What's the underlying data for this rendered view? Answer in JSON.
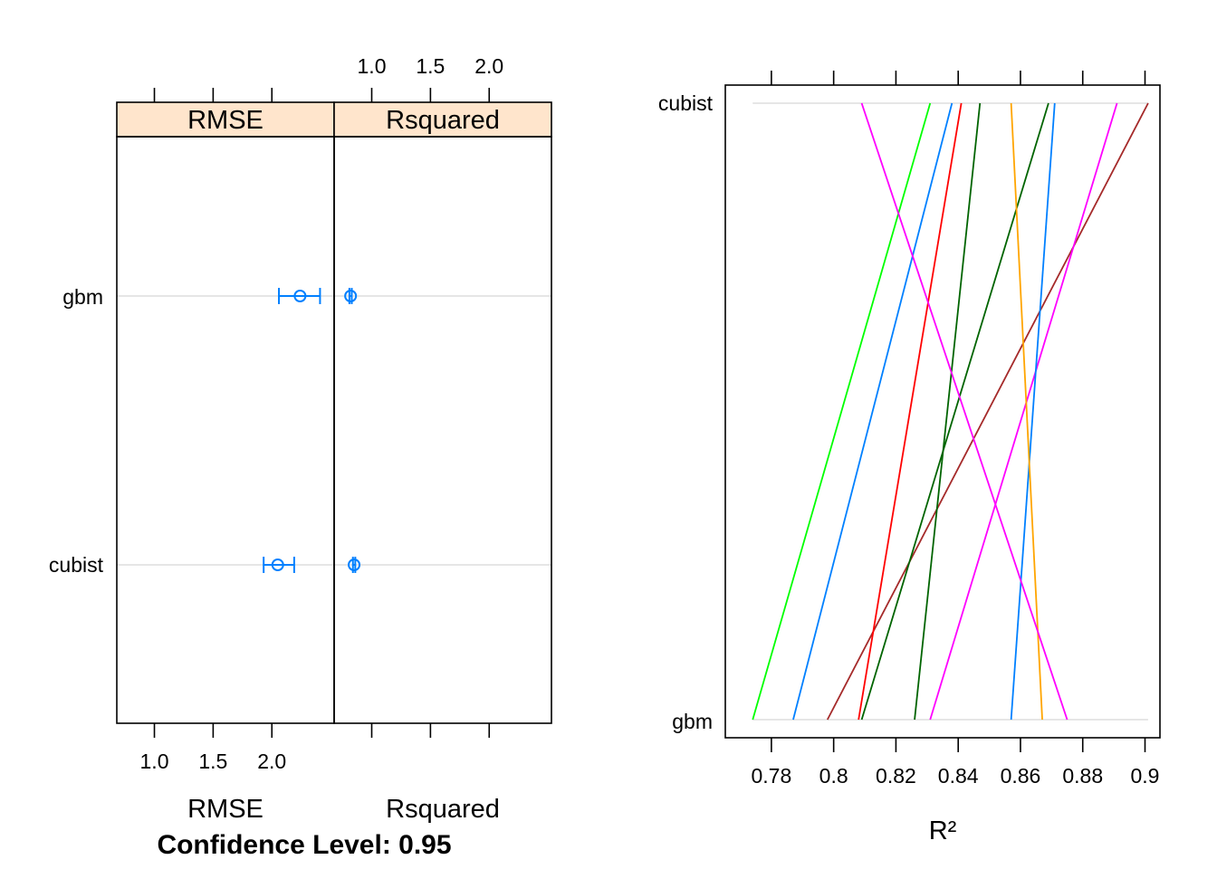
{
  "chart_data": [
    {
      "type": "dotplot-ci",
      "caption": "Confidence Level: 0.95",
      "panels": [
        "RMSE",
        "Rsquared"
      ],
      "bottom_labels": [
        "RMSE",
        "Rsquared"
      ],
      "rows": [
        "cubist",
        "gbm"
      ],
      "xlim": [
        0.68,
        2.53
      ],
      "ticks": [
        1.0,
        1.5,
        2.0
      ],
      "tick_labels": [
        "1.0",
        "1.5",
        "2.0"
      ],
      "color": "#0080ff",
      "strip_color": "#ffe5cc",
      "estimates": {
        "RMSE": {
          "gbm": {
            "mean": 2.24,
            "lower": 2.06,
            "upper": 2.41
          },
          "cubist": {
            "mean": 2.05,
            "lower": 1.93,
            "upper": 2.19
          }
        },
        "Rsquared": {
          "gbm": {
            "mean": 0.82,
            "lower": 0.81,
            "upper": 0.83
          },
          "cubist": {
            "mean": 0.85,
            "lower": 0.84,
            "upper": 0.86
          }
        }
      }
    },
    {
      "type": "parallel",
      "xlabel": "R²",
      "axes": [
        "gbm",
        "cubist"
      ],
      "xlim": [
        0.7652,
        0.9048
      ],
      "ticks": [
        0.78,
        0.8,
        0.82,
        0.84,
        0.86,
        0.88,
        0.9
      ],
      "tick_labels": [
        "0.78",
        "0.8",
        "0.82",
        "0.84",
        "0.86",
        "0.88",
        "0.9"
      ],
      "series": [
        {
          "color": "#00ff00",
          "values": [
            0.774,
            0.831
          ]
        },
        {
          "color": "#0080ff",
          "values": [
            0.787,
            0.838
          ]
        },
        {
          "color": "#a52a2a",
          "values": [
            0.798,
            0.901
          ]
        },
        {
          "color": "#ff0000",
          "values": [
            0.808,
            0.841
          ]
        },
        {
          "color": "#006400",
          "values": [
            0.809,
            0.869
          ]
        },
        {
          "color": "#006400",
          "values": [
            0.826,
            0.847
          ]
        },
        {
          "color": "#ff00ff",
          "values": [
            0.831,
            0.891
          ]
        },
        {
          "color": "#0080ff",
          "values": [
            0.857,
            0.871
          ]
        },
        {
          "color": "#ffa500",
          "values": [
            0.867,
            0.857
          ]
        },
        {
          "color": "#ff00ff",
          "values": [
            0.875,
            0.809
          ]
        }
      ]
    }
  ]
}
